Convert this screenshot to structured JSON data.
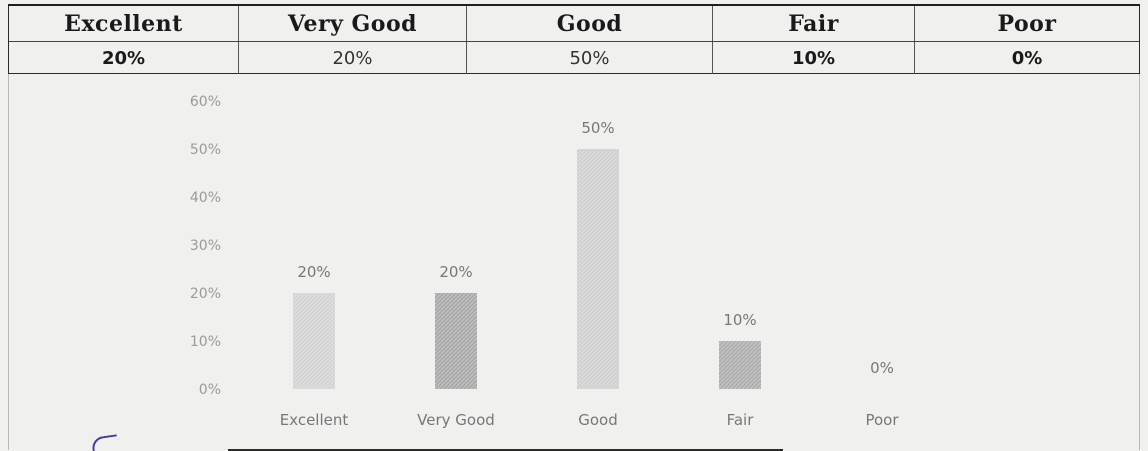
{
  "table": {
    "headers": [
      "Excellent",
      "Very Good",
      "Good",
      "Fair",
      "Poor"
    ],
    "values": [
      "20%",
      "20%",
      "50%",
      "10%",
      "0%"
    ]
  },
  "chart_data": {
    "type": "bar",
    "categories": [
      "Excellent",
      "Very Good",
      "Good",
      "Fair",
      "Poor"
    ],
    "values": [
      20,
      20,
      50,
      10,
      0
    ],
    "data_labels": [
      "20%",
      "20%",
      "50%",
      "10%",
      "0%"
    ],
    "title": "",
    "xlabel": "",
    "ylabel": "",
    "ylim": [
      0,
      60
    ],
    "y_ticks": [
      "0%",
      "10%",
      "20%",
      "30%",
      "40%",
      "50%",
      "60%"
    ],
    "grid": false,
    "legend": "none",
    "colors": {
      "bars": [
        "#d3d3d3",
        "#a9a9a9",
        "#cfcfcf",
        "#aeaeae",
        "#cfcfcf"
      ],
      "axis_text": "#9a9a9a",
      "label_text": "#777777"
    }
  }
}
